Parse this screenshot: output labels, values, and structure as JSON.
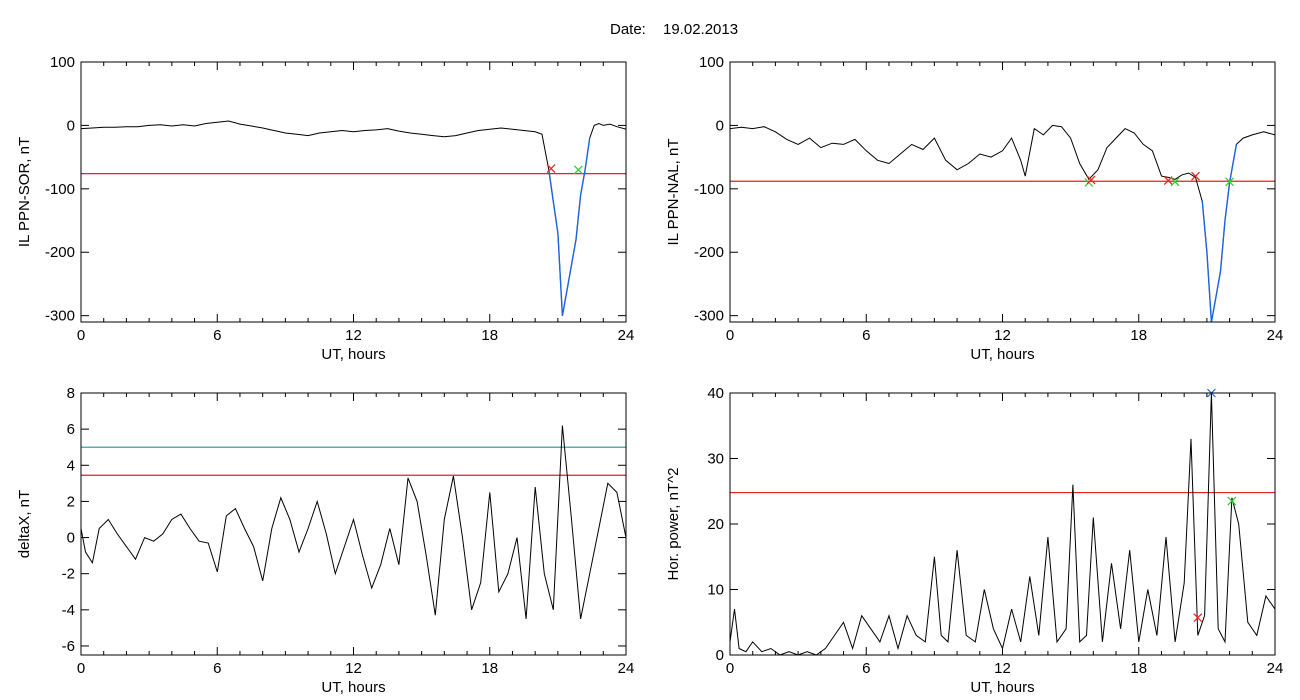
{
  "header": {
    "date_label": "Date:",
    "date_value": "19.02.2013"
  },
  "colors": {
    "trace": "#000000",
    "highlight": "#1e64dc",
    "threshold_red": "#e8201c",
    "threshold_teal": "#1a9a96",
    "marker_red": "#e8201c",
    "marker_green": "#2bcf2b",
    "marker_blue": "#1e64dc"
  },
  "chart_data": [
    {
      "id": "sor",
      "type": "line",
      "title": "",
      "xlabel": "UT, hours",
      "ylabel": "IL PPN-SOR, nT",
      "xlim": [
        0,
        24
      ],
      "ylim": [
        -310,
        100
      ],
      "xticks": [
        0,
        6,
        12,
        18,
        24
      ],
      "yticks": [
        100,
        0,
        -100,
        -200,
        -300
      ],
      "thresholds": [
        {
          "y": -76,
          "color": "red"
        }
      ],
      "series": [
        {
          "x": [
            0,
            0.5,
            1,
            1.5,
            2,
            2.5,
            3,
            3.5,
            4,
            4.5,
            5,
            5.5,
            6,
            6.5,
            7,
            7.5,
            8,
            8.5,
            9,
            9.5,
            10,
            10.5,
            11,
            11.5,
            12,
            12.5,
            13,
            13.5,
            14,
            14.5,
            15,
            15.5,
            16,
            16.5,
            17,
            17.5,
            18,
            18.5,
            19,
            19.5,
            20,
            20.3,
            20.6,
            20.8,
            21.0,
            21.2,
            21.4,
            21.6,
            21.8,
            22.0,
            22.2,
            22.4,
            22.6,
            22.8,
            23.0,
            23.3,
            23.6,
            24.0
          ],
          "y": [
            -5,
            -4,
            -3,
            -3,
            -2,
            -2,
            0,
            1,
            -1,
            1,
            -1,
            3,
            5,
            7,
            2,
            -1,
            -4,
            -8,
            -12,
            -14,
            -16,
            -12,
            -10,
            -8,
            -10,
            -8,
            -7,
            -5,
            -9,
            -12,
            -14,
            -16,
            -18,
            -16,
            -12,
            -8,
            -6,
            -4,
            -6,
            -8,
            -10,
            -14,
            -70,
            -120,
            -170,
            -300,
            -260,
            -220,
            -180,
            -110,
            -70,
            -20,
            0,
            3,
            0,
            2,
            -2,
            -6
          ]
        }
      ],
      "highlight_range": [
        20.6,
        22.4
      ],
      "markers": [
        {
          "x": 20.7,
          "y": -68,
          "color": "red"
        },
        {
          "x": 21.9,
          "y": -70,
          "color": "green"
        }
      ]
    },
    {
      "id": "nal",
      "type": "line",
      "title": "",
      "xlabel": "UT, hours",
      "ylabel": "IL PPN-NAL, nT",
      "xlim": [
        0,
        24
      ],
      "ylim": [
        -310,
        100
      ],
      "xticks": [
        0,
        6,
        12,
        18,
        24
      ],
      "yticks": [
        100,
        0,
        -100,
        -200,
        -300
      ],
      "thresholds": [
        {
          "y": -88,
          "color": "red"
        }
      ],
      "series": [
        {
          "x": [
            0,
            0.5,
            1,
            1.5,
            2,
            2.5,
            3,
            3.5,
            4,
            4.5,
            5,
            5.5,
            6,
            6.5,
            7,
            7.5,
            8,
            8.5,
            9,
            9.5,
            10,
            10.5,
            11,
            11.5,
            12,
            12.4,
            12.8,
            13.0,
            13.4,
            13.8,
            14.2,
            14.6,
            15.0,
            15.4,
            15.8,
            16.2,
            16.6,
            17.0,
            17.4,
            17.8,
            18.2,
            18.6,
            19.0,
            19.3,
            19.6,
            19.9,
            20.2,
            20.5,
            20.8,
            21.0,
            21.2,
            21.4,
            21.6,
            21.8,
            22.0,
            22.3,
            22.6,
            23.0,
            23.5,
            24.0
          ],
          "y": [
            -5,
            -3,
            -5,
            -2,
            -10,
            -22,
            -30,
            -20,
            -35,
            -28,
            -30,
            -22,
            -40,
            -55,
            -60,
            -45,
            -30,
            -38,
            -20,
            -55,
            -70,
            -60,
            -45,
            -50,
            -40,
            -20,
            -55,
            -80,
            -5,
            -15,
            0,
            -2,
            -20,
            -60,
            -85,
            -70,
            -35,
            -20,
            -5,
            -12,
            -30,
            -40,
            -80,
            -82,
            -85,
            -78,
            -75,
            -82,
            -120,
            -200,
            -310,
            -270,
            -230,
            -150,
            -90,
            -30,
            -20,
            -15,
            -10,
            -15
          ]
        }
      ],
      "highlight_range": [
        20.6,
        22.3
      ],
      "markers": [
        {
          "x": 15.8,
          "y": -90,
          "color": "green"
        },
        {
          "x": 15.9,
          "y": -86,
          "color": "red"
        },
        {
          "x": 19.3,
          "y": -87,
          "color": "red"
        },
        {
          "x": 19.6,
          "y": -89,
          "color": "green"
        },
        {
          "x": 20.5,
          "y": -80,
          "color": "red"
        },
        {
          "x": 22.0,
          "y": -89,
          "color": "green"
        }
      ]
    },
    {
      "id": "deltax",
      "type": "line",
      "title": "",
      "xlabel": "UT, hours",
      "ylabel": "deltaX, nT",
      "xlim": [
        0,
        24
      ],
      "ylim": [
        -6.5,
        8
      ],
      "xticks": [
        0,
        6,
        12,
        18,
        24
      ],
      "yticks": [
        8,
        6,
        4,
        2,
        0,
        -2,
        -4,
        -6
      ],
      "thresholds": [
        {
          "y": 5.0,
          "color": "teal"
        },
        {
          "y": 3.45,
          "color": "red"
        }
      ],
      "series": [
        {
          "x": [
            0,
            0.2,
            0.5,
            0.8,
            1.2,
            1.6,
            2.0,
            2.4,
            2.8,
            3.2,
            3.6,
            4.0,
            4.4,
            4.8,
            5.2,
            5.6,
            6.0,
            6.4,
            6.8,
            7.2,
            7.6,
            8.0,
            8.4,
            8.8,
            9.2,
            9.6,
            10.0,
            10.4,
            10.8,
            11.2,
            11.6,
            12.0,
            12.4,
            12.8,
            13.2,
            13.6,
            14.0,
            14.4,
            14.8,
            15.2,
            15.6,
            16.0,
            16.4,
            16.8,
            17.2,
            17.6,
            18.0,
            18.4,
            18.8,
            19.2,
            19.6,
            20.0,
            20.4,
            20.8,
            21.2,
            21.6,
            22.0,
            22.4,
            22.8,
            23.2,
            23.6,
            24.0
          ],
          "y": [
            0.5,
            -0.8,
            -1.4,
            0.5,
            1.0,
            0.2,
            -0.5,
            -1.2,
            0.0,
            -0.2,
            0.2,
            1.0,
            1.3,
            0.5,
            -0.2,
            -0.3,
            -1.9,
            1.2,
            1.6,
            0.5,
            -0.5,
            -2.4,
            0.5,
            2.2,
            1.0,
            -0.8,
            0.5,
            2.0,
            0.2,
            -2.0,
            -0.5,
            1.0,
            -1.0,
            -2.8,
            -1.5,
            0.5,
            -1.5,
            3.3,
            2.0,
            -1.0,
            -4.3,
            1.0,
            3.4,
            0.0,
            -4.0,
            -2.5,
            2.5,
            -3.0,
            -2.0,
            0.0,
            -4.5,
            2.8,
            -2.0,
            -4.0,
            6.2,
            1.0,
            -4.5,
            -2.0,
            0.5,
            3.0,
            2.5,
            0.0
          ]
        }
      ],
      "markers": []
    },
    {
      "id": "power",
      "type": "line",
      "title": "",
      "xlabel": "UT, hours",
      "ylabel": "Hor. power, nT^2",
      "xlim": [
        0,
        24
      ],
      "ylim": [
        0,
        40
      ],
      "xticks": [
        0,
        6,
        12,
        18,
        24
      ],
      "yticks": [
        40,
        30,
        20,
        10,
        0
      ],
      "thresholds": [
        {
          "y": 24.8,
          "color": "red"
        }
      ],
      "series": [
        {
          "x": [
            0,
            0.2,
            0.4,
            0.7,
            1.0,
            1.4,
            1.8,
            2.2,
            2.6,
            3.0,
            3.4,
            3.8,
            4.2,
            4.6,
            5.0,
            5.4,
            5.8,
            6.2,
            6.6,
            7.0,
            7.4,
            7.8,
            8.2,
            8.6,
            9.0,
            9.3,
            9.6,
            10.0,
            10.4,
            10.8,
            11.2,
            11.6,
            12.0,
            12.4,
            12.8,
            13.2,
            13.6,
            14.0,
            14.4,
            14.8,
            15.1,
            15.4,
            15.7,
            16.0,
            16.4,
            16.8,
            17.2,
            17.6,
            18.0,
            18.4,
            18.8,
            19.2,
            19.6,
            20.0,
            20.3,
            20.6,
            20.9,
            21.2,
            21.5,
            21.8,
            22.1,
            22.4,
            22.8,
            23.2,
            23.6,
            24.0
          ],
          "y": [
            2,
            7,
            1,
            0.5,
            2,
            0.5,
            1,
            0,
            0.5,
            0,
            0.5,
            0,
            1,
            3,
            5,
            1,
            6,
            4,
            2,
            6,
            1,
            6,
            3,
            2,
            15,
            3,
            2,
            16,
            3,
            2,
            10,
            4,
            1,
            7,
            2,
            12,
            3,
            18,
            2,
            4,
            26,
            2,
            3,
            21,
            2,
            14,
            4,
            16,
            2,
            10,
            3,
            18,
            2,
            11,
            33,
            3,
            6,
            40,
            4,
            2,
            24,
            20,
            5,
            3,
            9,
            7
          ]
        }
      ],
      "markers": [
        {
          "x": 20.6,
          "y": 5.7,
          "color": "red"
        },
        {
          "x": 21.2,
          "y": 40,
          "color": "blue"
        },
        {
          "x": 22.1,
          "y": 23.5,
          "color": "green"
        }
      ]
    }
  ]
}
